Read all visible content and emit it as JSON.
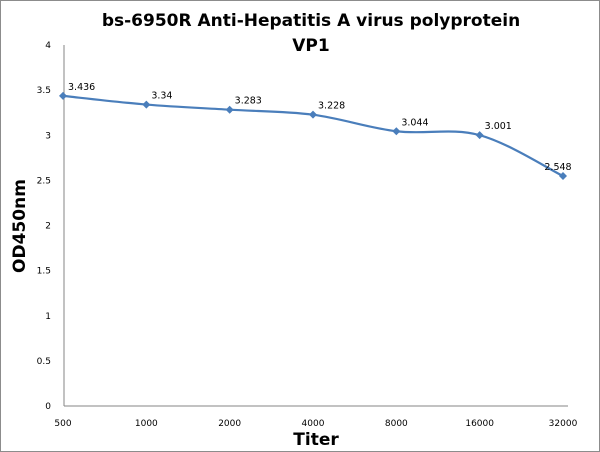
{
  "chart_data": {
    "type": "line",
    "title": "bs-6950R Anti-Hepatitis A virus polyprotein VP1",
    "title_lines": [
      "bs-6950R Anti-Hepatitis A virus polyprotein",
      "VP1"
    ],
    "xlabel": "Titer",
    "ylabel": "OD450nm",
    "categories": [
      "500",
      "1000",
      "2000",
      "4000",
      "8000",
      "16000",
      "32000"
    ],
    "series": [
      {
        "values": [
          3.436,
          3.34,
          3.283,
          3.228,
          3.044,
          3.001,
          2.548
        ],
        "labels": [
          "3.436",
          "3.34",
          "3.283",
          "3.228",
          "3.044",
          "3.001",
          "2.548"
        ],
        "color": "#4a7ebb"
      }
    ],
    "ylim": [
      0,
      4
    ],
    "yticks": [
      "0",
      "0.5",
      "1",
      "1.5",
      "2",
      "2.5",
      "3",
      "3.5",
      "4"
    ],
    "grid": false,
    "legend": "none",
    "line_style": "smoothed with diamond markers"
  }
}
